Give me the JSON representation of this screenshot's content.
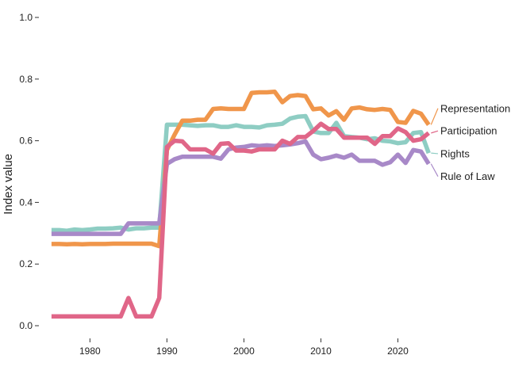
{
  "chart_data": {
    "type": "line",
    "title": "",
    "xlabel": "",
    "ylabel": "Index value",
    "xlim": [
      1974.5,
      2025
    ],
    "ylim": [
      -0.03,
      1.0
    ],
    "x_ticks": [
      1980,
      1990,
      2000,
      2010,
      2020
    ],
    "y_ticks": [
      0.0,
      0.2,
      0.4,
      0.6,
      0.8,
      1.0
    ],
    "y_tick_labels": [
      "0.0",
      "0.2",
      "0.4",
      "0.6",
      "0.8",
      "1.0"
    ],
    "grid": false,
    "legend": "direct labels at right end of lines",
    "x": [
      1975,
      1976,
      1977,
      1978,
      1979,
      1980,
      1981,
      1982,
      1983,
      1984,
      1985,
      1986,
      1987,
      1988,
      1989,
      1990,
      1991,
      1992,
      1993,
      1994,
      1995,
      1996,
      1997,
      1998,
      1999,
      2000,
      2001,
      2002,
      2003,
      2004,
      2005,
      2006,
      2007,
      2008,
      2009,
      2010,
      2011,
      2012,
      2013,
      2014,
      2015,
      2016,
      2017,
      2018,
      2019,
      2020,
      2021,
      2022,
      2023,
      2024
    ],
    "series": [
      {
        "name": "Representation",
        "color": "#F0964B",
        "values": [
          0.265,
          0.265,
          0.264,
          0.265,
          0.264,
          0.265,
          0.265,
          0.265,
          0.266,
          0.266,
          0.266,
          0.266,
          0.266,
          0.266,
          0.258,
          0.57,
          0.62,
          0.665,
          0.665,
          0.668,
          0.668,
          0.703,
          0.705,
          0.703,
          0.703,
          0.703,
          0.755,
          0.757,
          0.757,
          0.759,
          0.725,
          0.745,
          0.748,
          0.745,
          0.702,
          0.705,
          0.682,
          0.696,
          0.668,
          0.705,
          0.708,
          0.702,
          0.7,
          0.703,
          0.7,
          0.661,
          0.658,
          0.697,
          0.688,
          0.652
        ]
      },
      {
        "name": "Participation",
        "color": "#E06688",
        "values": [
          0.03,
          0.03,
          0.03,
          0.03,
          0.03,
          0.03,
          0.03,
          0.03,
          0.03,
          0.03,
          0.09,
          0.03,
          0.03,
          0.03,
          0.09,
          0.58,
          0.6,
          0.598,
          0.572,
          0.572,
          0.572,
          0.558,
          0.59,
          0.592,
          0.568,
          0.568,
          0.565,
          0.572,
          0.572,
          0.572,
          0.6,
          0.59,
          0.612,
          0.612,
          0.632,
          0.655,
          0.638,
          0.638,
          0.61,
          0.61,
          0.61,
          0.61,
          0.59,
          0.615,
          0.615,
          0.64,
          0.628,
          0.6,
          0.605,
          0.625
        ]
      },
      {
        "name": "Rights",
        "color": "#8ECDC3",
        "values": [
          0.31,
          0.31,
          0.308,
          0.312,
          0.31,
          0.312,
          0.315,
          0.315,
          0.316,
          0.318,
          0.312,
          0.316,
          0.316,
          0.318,
          0.318,
          0.652,
          0.652,
          0.652,
          0.65,
          0.648,
          0.65,
          0.65,
          0.645,
          0.645,
          0.65,
          0.645,
          0.645,
          0.643,
          0.65,
          0.652,
          0.655,
          0.672,
          0.678,
          0.68,
          0.63,
          0.625,
          0.625,
          0.658,
          0.615,
          0.612,
          0.61,
          0.605,
          0.608,
          0.6,
          0.598,
          0.592,
          0.595,
          0.625,
          0.628,
          0.56
        ]
      },
      {
        "name": "Rule of Law",
        "color": "#A889C8",
        "values": [
          0.298,
          0.298,
          0.298,
          0.298,
          0.298,
          0.298,
          0.298,
          0.298,
          0.298,
          0.298,
          0.332,
          0.332,
          0.332,
          0.332,
          0.332,
          0.525,
          0.54,
          0.548,
          0.548,
          0.548,
          0.548,
          0.548,
          0.542,
          0.572,
          0.578,
          0.58,
          0.585,
          0.583,
          0.585,
          0.583,
          0.585,
          0.588,
          0.592,
          0.598,
          0.555,
          0.54,
          0.545,
          0.552,
          0.545,
          0.555,
          0.535,
          0.535,
          0.535,
          0.522,
          0.53,
          0.555,
          0.528,
          0.57,
          0.565,
          0.525
        ]
      }
    ],
    "labels": [
      {
        "text": "Representation",
        "series": "Representation",
        "y": 0.705
      },
      {
        "text": "Participation",
        "series": "Participation",
        "y": 0.632
      },
      {
        "text": "Rights",
        "series": "Rights",
        "y": 0.558
      },
      {
        "text": "Rule of Law",
        "series": "Rule of Law",
        "y": 0.484
      }
    ]
  }
}
